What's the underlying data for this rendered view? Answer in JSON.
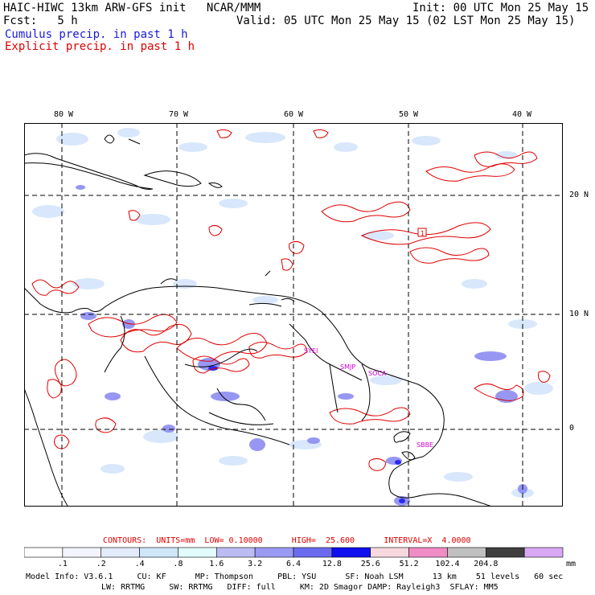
{
  "header": {
    "line1_left": "HAIC-HIWC 13km ARW-GFS init   NCAR/MMM",
    "line1_right": "Init: 00 UTC Mon 25 May 15",
    "line2_left": "Fcst:   5 h",
    "line2_right": "Valid: 05 UTC Mon 25 May 15 (02 LST Mon 25 May 15)",
    "cumulus": "Cumulus precip. in past 1 h",
    "explicit": "Explicit precip. in past 1 h"
  },
  "map": {
    "lon_labels": [
      "80 W",
      "70 W",
      "60 W",
      "50 W",
      "40 W"
    ],
    "lat_labels": [
      "20 N",
      "10 N",
      "0"
    ],
    "stations": [
      "SYEI",
      "SMJP",
      "SOCA",
      "SBBE"
    ],
    "marker": "1",
    "colors": {
      "coast": "#000000",
      "contour": "#e00000",
      "station": "#cc00cc",
      "grid": "#000000"
    }
  },
  "contours_line": "CONTOURS:  UNITS=mm  LOW= 0.10000      HIGH=  25.600      INTERVAL=X  4.0000",
  "legend": {
    "colors": [
      "#ffffff",
      "#f4f4ff",
      "#e2ecfb",
      "#d0e6f9",
      "#e2fbfb",
      "#bcbcf4",
      "#9a9af4",
      "#6b6bf0",
      "#1010ee",
      "#f6d8de",
      "#f08cc6",
      "#c0c0c0",
      "#404040",
      "#d8a8f4"
    ],
    "ticks": [
      ".1",
      ".2",
      ".4",
      ".8",
      "1.6",
      "3.2",
      "6.4",
      "12.8",
      "25.6",
      "51.2",
      "102.4",
      "204.8"
    ],
    "unit": "mm"
  },
  "model_info": {
    "line1": "Model Info: V3.6.1     CU: KF      MP: Thompson     PBL: YSU      SF: Noah LSM      13 km    51 levels   60 sec",
    "line2": "LW: RRTMG     SW: RRTMG   DIFF: full     KM: 2D Smagor DAMP: Rayleigh3  SFLAY: MM5"
  }
}
